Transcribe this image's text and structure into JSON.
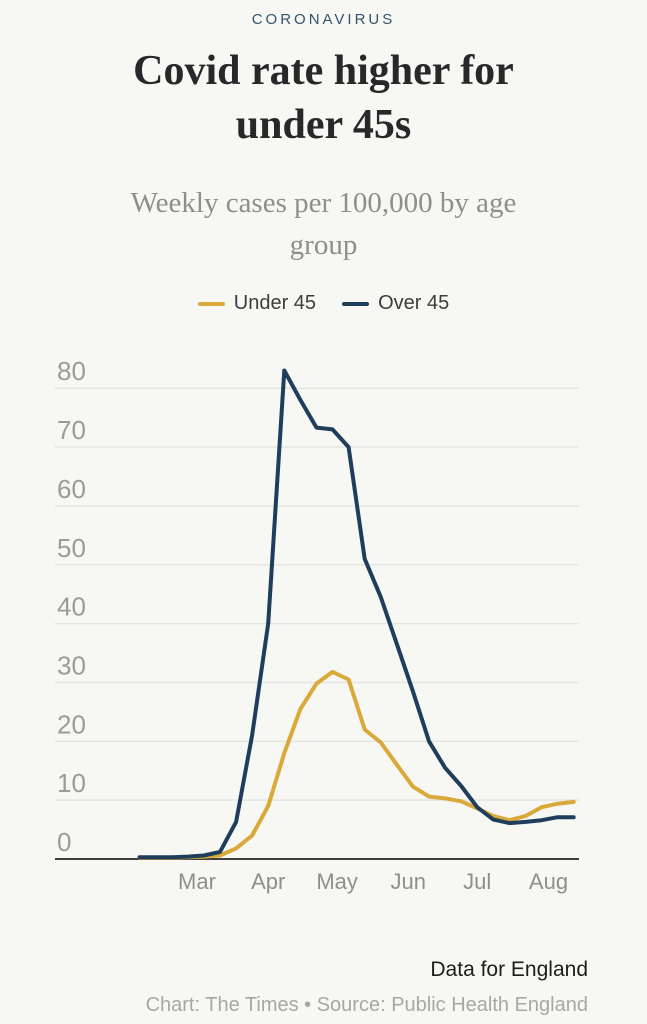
{
  "page": {
    "kicker": "CORONAVIRUS",
    "title_lines": [
      "Covid rate higher for",
      "under 45s"
    ],
    "subtitle_lines": [
      "Weekly cases per 100,000 by age",
      "group"
    ],
    "footer_note": "Data for England",
    "credit": "Chart: The Times • Source: Public Health England"
  },
  "legend": {
    "items": [
      {
        "label": "Under 45",
        "color": "#d9a93a"
      },
      {
        "label": "Over 45",
        "color": "#1f3e5c"
      }
    ]
  },
  "colors": {
    "background": "#f7f7f4",
    "gridline": "#e4e4e1",
    "baseline": "#3f3f3f",
    "y_tick_text": "#9b9b99",
    "x_tick_text": "#8f8f8d",
    "under_45_line": "#d9a93a",
    "over_45_line": "#1f3e5c"
  },
  "chart_data": {
    "type": "line",
    "title": "Covid rate higher for under 45s",
    "subtitle": "Weekly cases per 100,000 by age group",
    "note": "Data for England",
    "source": "Chart: The Times • Source: Public Health England",
    "legend_position": "top",
    "x_axis": {
      "unit": "weekly readings, x measured in days from 1 Feb",
      "tick_labels": [
        "Mar",
        "Apr",
        "May",
        "Jun",
        "Jul",
        "Aug"
      ],
      "tick_days": [
        29,
        60,
        90,
        121,
        151,
        182
      ]
    },
    "y_axis": {
      "label": "Weekly cases per 100,000",
      "ticks": [
        0,
        10,
        20,
        30,
        40,
        50,
        60,
        70,
        80
      ],
      "range": [
        0,
        85
      ],
      "grid": true
    },
    "x_days": [
      4,
      11,
      18,
      25,
      32,
      39,
      46,
      53,
      60,
      67,
      74,
      81,
      88,
      95,
      102,
      109,
      116,
      123,
      130,
      137,
      144,
      151,
      158,
      165,
      172,
      179,
      186,
      193
    ],
    "series": [
      {
        "name": "Under 45",
        "color": "#d9a93a",
        "values": [
          0.2,
          0.2,
          0.2,
          0.3,
          0.4,
          0.6,
          1.8,
          4,
          9,
          18,
          25.5,
          29.8,
          31.8,
          30.5,
          22,
          19.8,
          16,
          12.3,
          10.6,
          10.3,
          9.8,
          8.6,
          7.3,
          6.6,
          7.3,
          8.8,
          9.4,
          9.7
        ]
      },
      {
        "name": "Over 45",
        "color": "#1f3e5c",
        "values": [
          0.3,
          0.3,
          0.3,
          0.4,
          0.6,
          1.2,
          6.3,
          21,
          40,
          83,
          78,
          73.3,
          73,
          70,
          51,
          44.5,
          36.5,
          28.5,
          20,
          15.5,
          12.4,
          8.8,
          6.7,
          6.1,
          6.3,
          6.6,
          7.1,
          7.1
        ]
      }
    ]
  }
}
